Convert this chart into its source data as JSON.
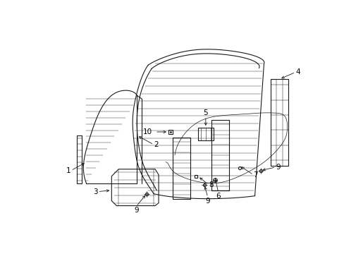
{
  "bg_color": "#ffffff",
  "line_color": "#1a1a1a",
  "label_color": "#000000",
  "figsize": [
    4.89,
    3.6
  ],
  "dpi": 100,
  "label_fontsize": 7.5
}
